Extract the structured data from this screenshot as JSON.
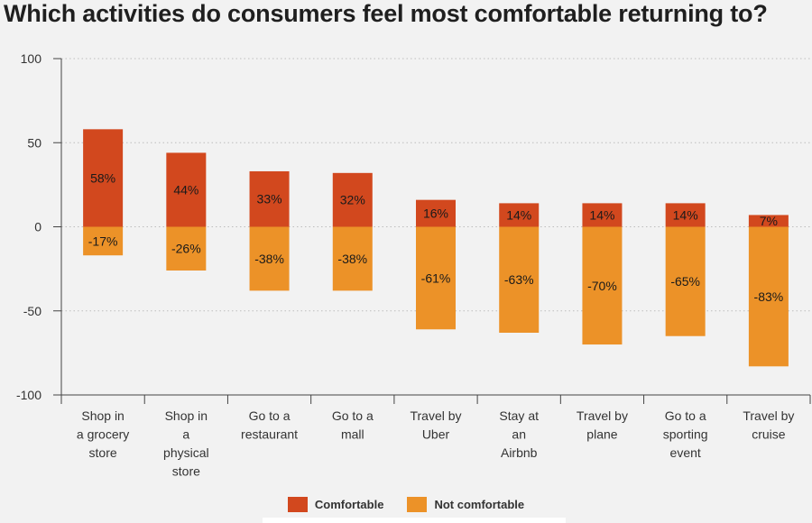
{
  "chart_data": {
    "type": "bar",
    "title": "Which activities do consumers feel most comfortable returning to?",
    "categories": [
      "Shop in a grocery store",
      "Shop in a physical store",
      "Go to a restaurant",
      "Go to a mall",
      "Travel by Uber",
      "Stay at an Airbnb",
      "Travel by plane",
      "Go to a sporting event",
      "Travel by cruise"
    ],
    "category_lines": [
      [
        "Shop in",
        "a grocery",
        "store"
      ],
      [
        "Shop in",
        "a",
        "physical",
        "store"
      ],
      [
        "Go to a",
        "restaurant"
      ],
      [
        "Go to a",
        "mall"
      ],
      [
        "Travel by",
        "Uber"
      ],
      [
        "Stay at",
        "an",
        "Airbnb"
      ],
      [
        "Travel by",
        "plane"
      ],
      [
        "Go to a",
        "sporting",
        "event"
      ],
      [
        "Travel by",
        "cruise"
      ]
    ],
    "series": [
      {
        "name": "Comfortable",
        "color": "#d2481e",
        "values": [
          58,
          44,
          33,
          32,
          16,
          14,
          14,
          14,
          7
        ],
        "labels": [
          "58%",
          "44%",
          "33%",
          "32%",
          "16%",
          "14%",
          "14%",
          "14%",
          "7%"
        ]
      },
      {
        "name": "Not comfortable",
        "color": "#ec9228",
        "values": [
          -17,
          -26,
          -38,
          -38,
          -61,
          -63,
          -70,
          -65,
          -83
        ],
        "labels": [
          "-17%",
          "-26%",
          "-38%",
          "-38%",
          "-61%",
          "-63%",
          "-70%",
          "-65%",
          "-83%"
        ]
      }
    ],
    "ylim": [
      -100,
      100
    ],
    "yticks": [
      100,
      50,
      0,
      -50,
      -100
    ],
    "grid": true,
    "legend_position": "bottom-center",
    "xlabel": "",
    "ylabel": ""
  }
}
